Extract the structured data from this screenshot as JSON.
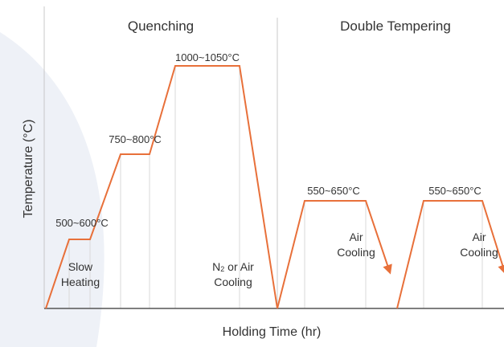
{
  "diagram": {
    "phases": [
      {
        "label": "Quenching"
      },
      {
        "label": "Double Tempering"
      }
    ],
    "y_axis_label": "Temperature (°C)",
    "x_axis_label": "Holding Time (hr)",
    "annotations": {
      "temp_500_600": "500~600°C",
      "temp_750_800": "750~800°C",
      "temp_1000_1050": "1000~1050°C",
      "temp_550_650_first": "550~650°C",
      "temp_550_650_second": "550~650°C",
      "slow_heating_line1": "Slow",
      "slow_heating_line2": "Heating",
      "n2_cooling_prefix": "N",
      "n2_cooling_subscript": "2",
      "n2_cooling_suffix": " or Air",
      "n2_cooling_line2": "Cooling",
      "air_cooling_1_line1": "Air",
      "air_cooling_1_line2": "Cooling",
      "air_cooling_2_line1": "Air",
      "air_cooling_2_line2": "Cooling"
    },
    "colors": {
      "curve": "#E8703A",
      "grid": "#D9D9D9",
      "axis": "#555555",
      "text": "#333333",
      "background_shape": "#EEF1F7"
    }
  }
}
